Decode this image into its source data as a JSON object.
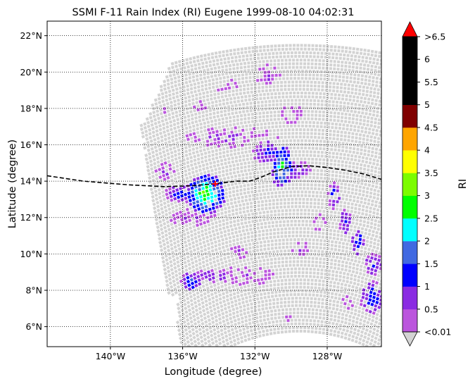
{
  "chart_data": {
    "type": "heatmap",
    "title": "SSMI F-11 Rain Index (RI) Eugene 1999-08-10 04:02:31",
    "xlabel": "Longitude (degree)",
    "ylabel": "Latitude (degree)",
    "xlim": [
      -143.5,
      -125.0
    ],
    "ylim": [
      4.9,
      22.8
    ],
    "x_ticks": [
      {
        "value": -140,
        "label": "140°W"
      },
      {
        "value": -136,
        "label": "136°W"
      },
      {
        "value": -132,
        "label": "132°W"
      },
      {
        "value": -128,
        "label": "128°W"
      }
    ],
    "y_ticks": [
      {
        "value": 6,
        "label": "6°N"
      },
      {
        "value": 8,
        "label": "8°N"
      },
      {
        "value": 10,
        "label": "10°N"
      },
      {
        "value": 12,
        "label": "12°N"
      },
      {
        "value": 14,
        "label": "14°N"
      },
      {
        "value": 16,
        "label": "16°N"
      },
      {
        "value": 18,
        "label": "18°N"
      },
      {
        "value": 20,
        "label": "20°N"
      },
      {
        "value": 22,
        "label": "22°N"
      }
    ],
    "grid": true,
    "swath_color": "#d3d3d3",
    "storm_track": [
      [
        -143.5,
        14.3
      ],
      [
        -141.5,
        14.0
      ],
      [
        -139.0,
        13.8
      ],
      [
        -137.0,
        13.7
      ],
      [
        -135.5,
        13.75
      ],
      [
        -134.3,
        13.85
      ],
      [
        -133.0,
        14.0
      ],
      [
        -132.3,
        14.0
      ],
      [
        -131.7,
        14.2
      ],
      [
        -131.0,
        14.5
      ],
      [
        -130.0,
        14.8
      ],
      [
        -129.0,
        14.85
      ],
      [
        -128.0,
        14.75
      ],
      [
        -127.0,
        14.6
      ],
      [
        -126.0,
        14.4
      ],
      [
        -125.0,
        14.1
      ]
    ],
    "storm_center": {
      "lon": -134.2,
      "lat": 13.85
    },
    "rain_clusters": [
      {
        "lon": -134.7,
        "lat": 13.3,
        "rx": 1.1,
        "ry": 1.1,
        "peak": 3.2,
        "density": 0.95
      },
      {
        "lon": -136.0,
        "lat": 13.3,
        "rx": 1.0,
        "ry": 0.5,
        "peak": 1.4,
        "density": 0.8
      },
      {
        "lon": -135.5,
        "lat": 12.0,
        "rx": 1.4,
        "ry": 0.45,
        "peak": 0.6,
        "density": 0.7
      },
      {
        "lon": -136.9,
        "lat": 14.5,
        "rx": 0.6,
        "ry": 0.5,
        "peak": 0.6,
        "density": 0.6
      },
      {
        "lon": -133.3,
        "lat": 16.4,
        "rx": 2.6,
        "ry": 0.55,
        "peak": 0.7,
        "density": 0.6
      },
      {
        "lon": -130.5,
        "lat": 14.8,
        "rx": 0.6,
        "ry": 1.2,
        "peak": 2.6,
        "density": 0.9
      },
      {
        "lon": -131.3,
        "lat": 15.6,
        "rx": 0.9,
        "ry": 0.6,
        "peak": 1.4,
        "density": 0.8
      },
      {
        "lon": -129.6,
        "lat": 14.6,
        "rx": 0.7,
        "ry": 0.5,
        "peak": 1.2,
        "density": 0.7
      },
      {
        "lon": -127.6,
        "lat": 13.2,
        "rx": 0.35,
        "ry": 0.8,
        "peak": 1.3,
        "density": 0.85
      },
      {
        "lon": -127.0,
        "lat": 11.8,
        "rx": 0.35,
        "ry": 0.8,
        "peak": 1.3,
        "density": 0.85
      },
      {
        "lon": -126.3,
        "lat": 10.6,
        "rx": 0.35,
        "ry": 0.7,
        "peak": 1.8,
        "density": 0.85
      },
      {
        "lon": -125.4,
        "lat": 9.4,
        "rx": 0.5,
        "ry": 0.6,
        "peak": 1.4,
        "density": 0.8
      },
      {
        "lon": -125.5,
        "lat": 7.6,
        "rx": 0.7,
        "ry": 0.9,
        "peak": 1.5,
        "density": 0.8
      },
      {
        "lon": -135.5,
        "lat": 8.5,
        "rx": 0.6,
        "ry": 0.5,
        "peak": 1.8,
        "density": 0.9
      },
      {
        "lon": -134.3,
        "lat": 8.8,
        "rx": 1.1,
        "ry": 0.35,
        "peak": 1.2,
        "density": 0.8
      },
      {
        "lon": -132.5,
        "lat": 8.8,
        "rx": 1.6,
        "ry": 0.5,
        "peak": 0.6,
        "density": 0.55
      },
      {
        "lon": -132.8,
        "lat": 10.1,
        "rx": 0.7,
        "ry": 0.4,
        "peak": 0.6,
        "density": 0.5
      },
      {
        "lon": -133.5,
        "lat": 19.2,
        "rx": 0.6,
        "ry": 0.4,
        "peak": 0.6,
        "density": 0.6
      },
      {
        "lon": -131.3,
        "lat": 19.8,
        "rx": 0.7,
        "ry": 0.6,
        "peak": 0.6,
        "density": 0.6
      },
      {
        "lon": -130.0,
        "lat": 17.7,
        "rx": 0.8,
        "ry": 0.5,
        "peak": 0.4,
        "density": 0.5
      },
      {
        "lon": -129.5,
        "lat": 10.3,
        "rx": 0.5,
        "ry": 0.4,
        "peak": 0.6,
        "density": 0.6
      },
      {
        "lon": -128.4,
        "lat": 11.7,
        "rx": 0.4,
        "ry": 0.5,
        "peak": 0.4,
        "density": 0.5
      },
      {
        "lon": -135.2,
        "lat": 18.1,
        "rx": 0.5,
        "ry": 0.35,
        "peak": 0.4,
        "density": 0.5
      },
      {
        "lon": -137.0,
        "lat": 17.9,
        "rx": 0.2,
        "ry": 0.2,
        "peak": 0.3,
        "density": 0.8
      },
      {
        "lon": -130.2,
        "lat": 6.6,
        "rx": 0.3,
        "ry": 0.3,
        "peak": 0.3,
        "density": 0.5
      },
      {
        "lon": -126.8,
        "lat": 7.4,
        "rx": 0.4,
        "ry": 0.4,
        "peak": 0.4,
        "density": 0.5
      }
    ]
  },
  "colorbar": {
    "label": "RI",
    "under_color": "#d3d3d3",
    "over_color": "#ff0000",
    "bins": [
      {
        "color": "#bb55dd"
      },
      {
        "color": "#8a2be2"
      },
      {
        "color": "#0000ff"
      },
      {
        "color": "#4169e1"
      },
      {
        "color": "#00ffff"
      },
      {
        "color": "#00ff00"
      },
      {
        "color": "#7cfc00"
      },
      {
        "color": "#ffff00"
      },
      {
        "color": "#ffa500"
      },
      {
        "color": "#800000"
      },
      {
        "color": "#000000"
      },
      {
        "color": "#000000"
      },
      {
        "color": "#000000"
      }
    ],
    "tick_labels": [
      "<0.01",
      "0.5",
      "1",
      "1.5",
      "2",
      "2.5",
      "3",
      "3.5",
      "4",
      "4.5",
      "5",
      "5.5",
      "6",
      ">6.5"
    ]
  }
}
